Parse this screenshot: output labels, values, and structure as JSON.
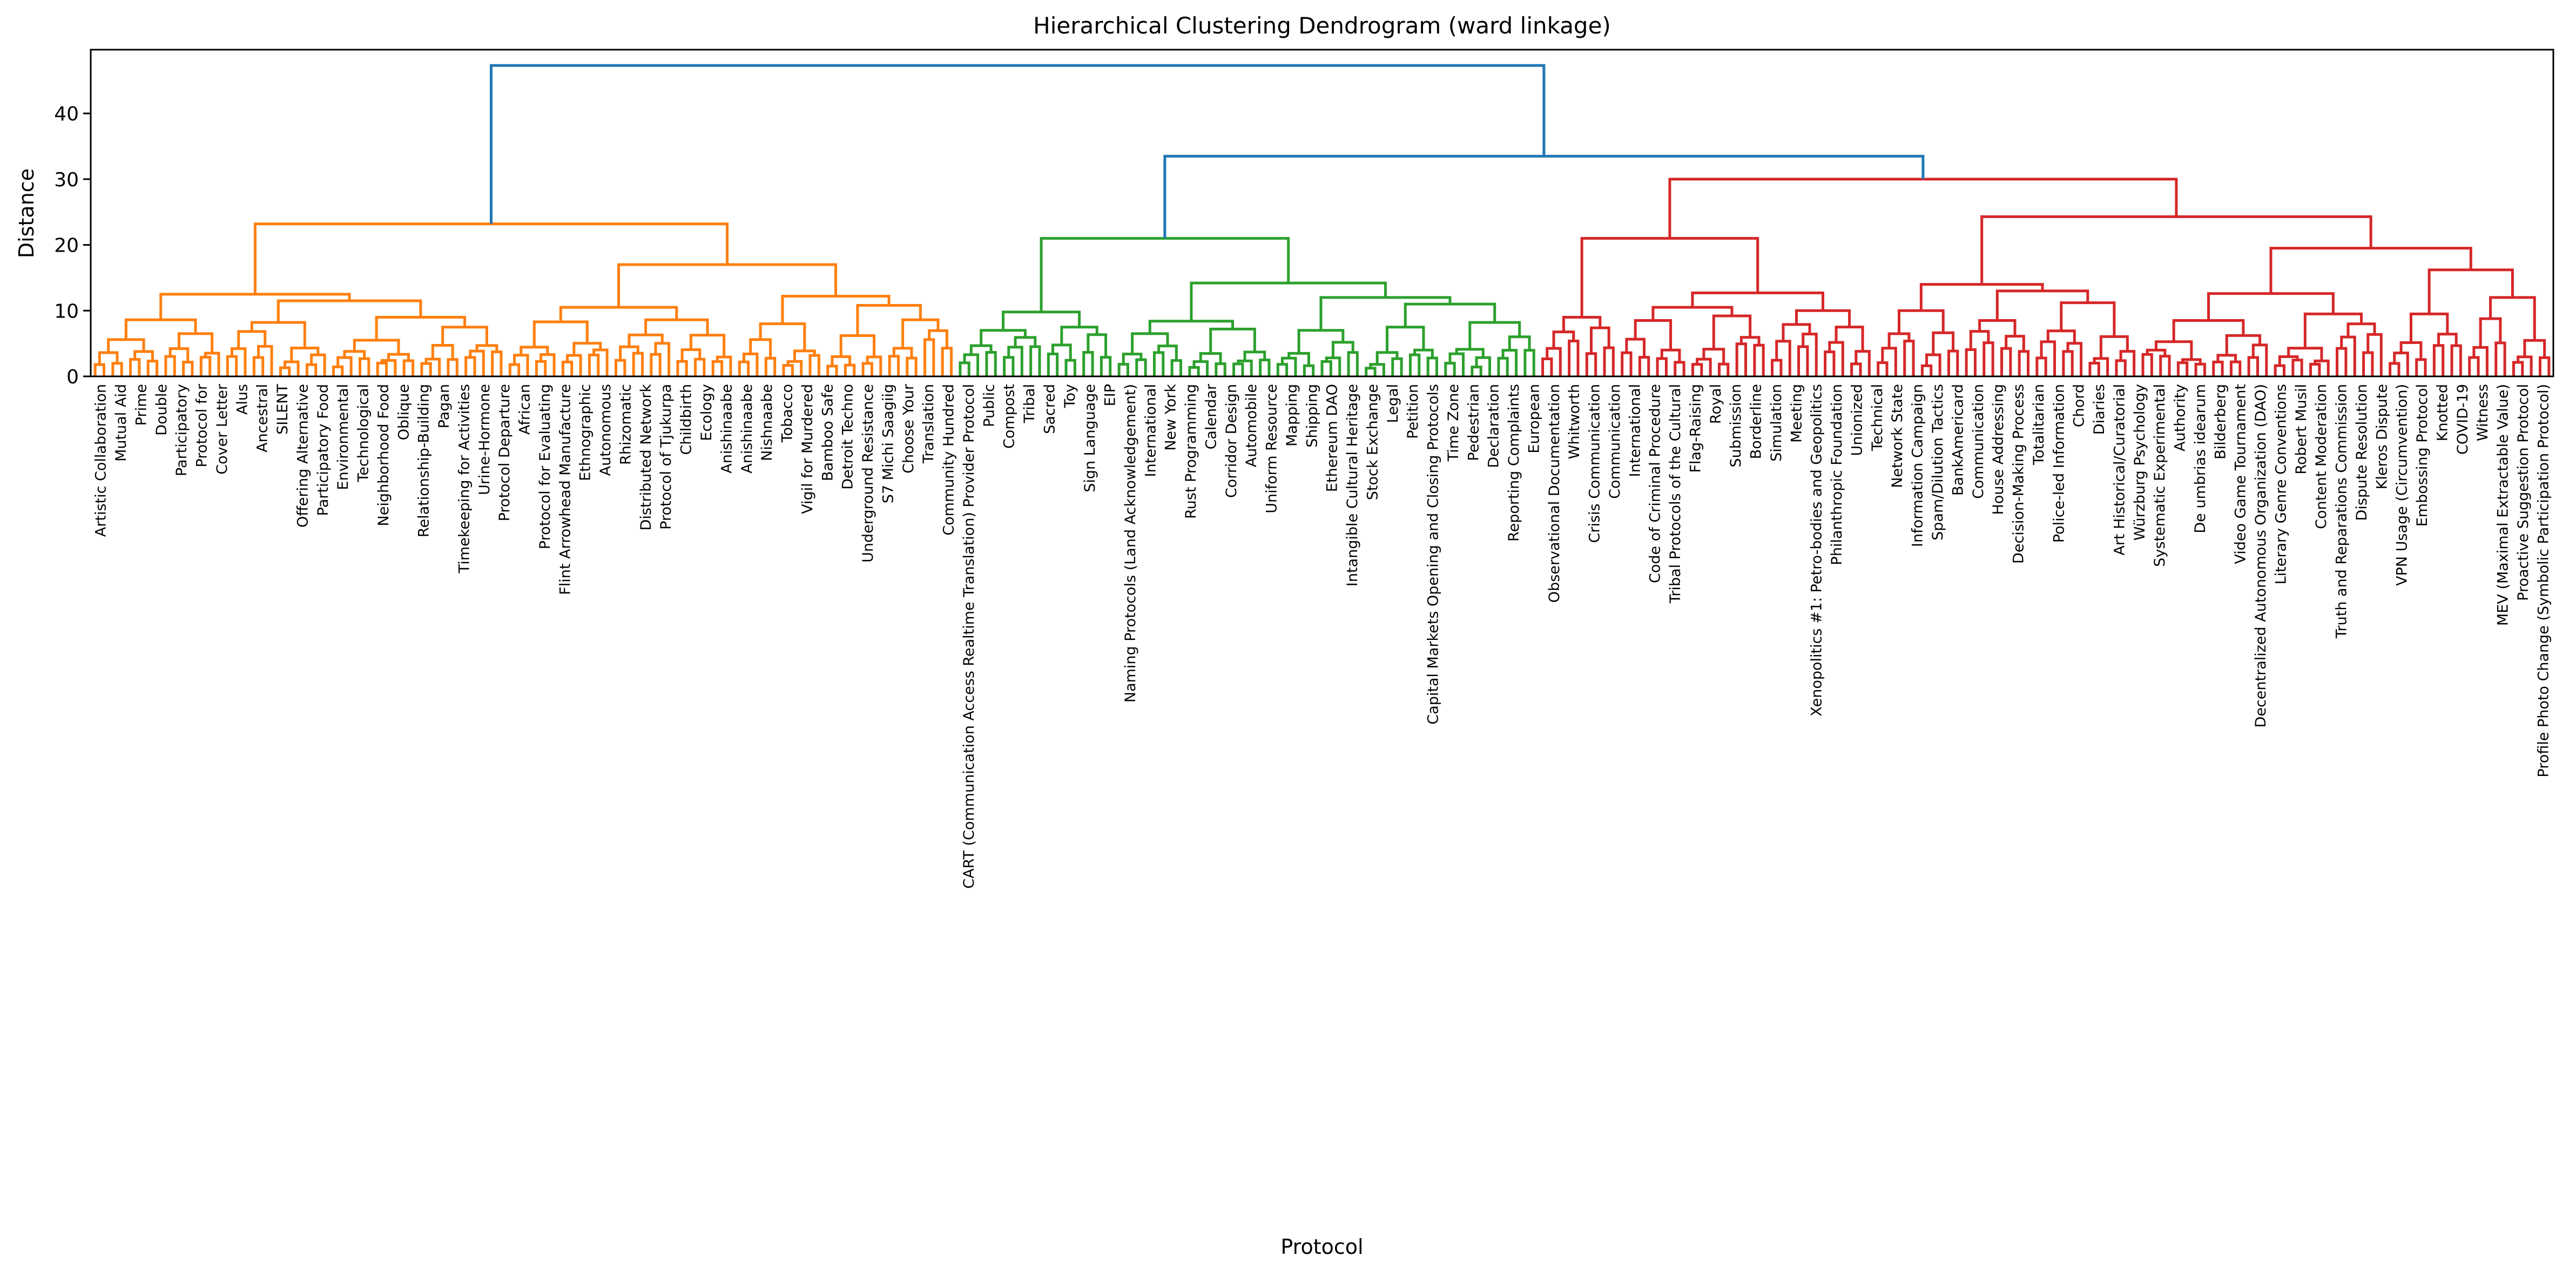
{
  "chart_data": {
    "type": "dendrogram",
    "title": "Hierarchical Clustering Dendrogram (ward linkage)",
    "xlabel": "Protocol",
    "ylabel": "Distance",
    "ylim": [
      0,
      49.7
    ],
    "yticks": [
      0,
      10,
      20,
      30,
      40
    ],
    "grid": false,
    "above_threshold_color": "#1f77b4",
    "tree": {
      "h": 47.3,
      "color": "#1f77b4",
      "c": [
        {
          "cluster": "orange",
          "color": "#ff7f0e",
          "h": 23.2,
          "c": [
            {
              "h": 12.5,
              "c": [
                {
                  "h": 8.6,
                  "c": [
                    {
                      "h": 5.6,
                      "n": 8
                    },
                    {
                      "h": 6.5,
                      "n": 7
                    }
                  ]
                },
                {
                  "h": 11.5,
                  "c": [
                    {
                      "h": 8.2,
                      "n": 12
                    },
                    {
                      "h": 9.0,
                      "c": [
                        {
                          "h": 5.5,
                          "n": 10
                        },
                        {
                          "h": 7.5,
                          "n": 10
                        }
                      ]
                    }
                  ]
                }
              ]
            },
            {
              "h": 17.0,
              "c": [
                {
                  "h": 10.5,
                  "c": [
                    {
                      "h": 8.3,
                      "n": 12
                    },
                    {
                      "h": 8.6,
                      "n": 14
                    }
                  ]
                },
                {
                  "h": 12.2,
                  "c": [
                    {
                      "h": 8.0,
                      "n": 10
                    },
                    {
                      "h": 10.8,
                      "c": [
                        {
                          "h": 6.2,
                          "n": 7
                        },
                        {
                          "h": 8.6,
                          "n": 8
                        }
                      ]
                    }
                  ]
                }
              ]
            }
          ]
        },
        {
          "h": 33.5,
          "color": "#1f77b4",
          "c": [
            {
              "cluster": "green",
              "color": "#2ca02c",
              "h": 21.0,
              "c": [
                {
                  "h": 9.8,
                  "c": [
                    {
                      "h": 7.0,
                      "n": 10
                    },
                    {
                      "h": 7.5,
                      "n": 8
                    }
                  ]
                },
                {
                  "h": 14.2,
                  "c": [
                    {
                      "h": 8.4,
                      "c": [
                        {
                          "h": 6.5,
                          "n": 8
                        },
                        {
                          "h": 7.2,
                          "n": 10
                        }
                      ]
                    },
                    {
                      "h": 12.0,
                      "c": [
                        {
                          "h": 7.0,
                          "n": 10
                        },
                        {
                          "h": 11.0,
                          "c": [
                            {
                              "h": 7.5,
                              "n": 9
                            },
                            {
                              "h": 8.2,
                              "n": 11
                            }
                          ]
                        }
                      ]
                    }
                  ]
                }
              ]
            },
            {
              "cluster": "red",
              "color": "#d62728",
              "h": 30.0,
              "c": [
                {
                  "h": 21.0,
                  "c": [
                    {
                      "h": 9.0,
                      "n": 9
                    },
                    {
                      "h": 12.7,
                      "c": [
                        {
                          "h": 10.5,
                          "c": [
                            {
                              "h": 8.5,
                              "n": 8
                            },
                            {
                              "h": 9.2,
                              "n": 9
                            }
                          ]
                        },
                        {
                          "h": 10.0,
                          "n": 12
                        }
                      ]
                    }
                  ]
                },
                {
                  "h": 24.3,
                  "c": [
                    {
                      "h": 14.0,
                      "c": [
                        {
                          "h": 10.0,
                          "n": 10
                        },
                        {
                          "h": 13.0,
                          "c": [
                            {
                              "h": 8.5,
                              "n": 8
                            },
                            {
                              "h": 11.2,
                              "n": 12
                            }
                          ]
                        }
                      ]
                    },
                    {
                      "h": 19.5,
                      "c": [
                        {
                          "h": 12.6,
                          "c": [
                            {
                              "h": 8.5,
                              "n": 15
                            },
                            {
                              "h": 9.5,
                              "n": 13
                            }
                          ]
                        },
                        {
                          "h": 16.2,
                          "c": [
                            {
                              "h": 9.5,
                              "n": 9
                            },
                            {
                              "h": 12.0,
                              "n": 10
                            }
                          ]
                        }
                      ]
                    }
                  ]
                }
              ]
            }
          ]
        }
      ]
    },
    "leaf_labels": {
      "orange": [
        "Artistic Collaboration",
        "Mutual Aid",
        "Prime",
        "Double",
        "Participatory",
        "Protocol for",
        "Cover Letter",
        "Alus",
        "Ancestral",
        "SILENT",
        "Offering Alternative",
        "Participatory Food",
        "Environmental",
        "Technological",
        "Neighborhood Food",
        "Oblique",
        "Relationship-Building",
        "Pagan",
        "Timekeeping for Activities",
        "Urine-Hormone",
        "Protocol Departure",
        "African",
        "Protocol for Evaluating",
        "Flint Arrowhead Manufacture",
        "Ethnographic",
        "Autonomous",
        "Rhizomatic",
        "Distributed Network",
        "Protocol of Tjukurpa",
        "Childbirth",
        "Ecology",
        "Anishinaabe",
        "Anishinaabe",
        "Nishnaabe",
        "Tobacco",
        "Vigil for Murdered",
        "Bamboo Safe",
        "Detroit Techno",
        "Underground Resistance",
        "S7 Michi Saagiig",
        "Choose Your",
        "Translation",
        "Community Hundred",
        "CART (Communication Access Realtime Translation) Provider Protocol",
        "Public",
        "Compost",
        "Tribal",
        "Sacred",
        "Toy",
        "Sign Language",
        "EIP",
        "Naming Protocols (Land Acknowledgement)",
        "International",
        "New York"
      ],
      "green": [
        "Rust Programming",
        "Calendar",
        "Corridor Design",
        "Automobile",
        "Uniform Resource",
        "Mapping",
        "Shipping",
        "Ethereum DAO",
        "Intangible Cultural Heritage",
        "Stock Exchange",
        "Legal",
        "Petition",
        "Capital Markets Opening and Closing Protocols",
        "Time Zone",
        "Pedestrian",
        "Declaration",
        "Reporting Complaints",
        "European",
        "Observational Documentation",
        "Whitworth",
        "Crisis Communication",
        "Communication",
        "International",
        "Code of Criminal Procedure",
        "Tribal Protocols of the Cultural",
        "Flag-Raising"
      ],
      "red": [
        "Royal",
        "Submission",
        "Borderline",
        "Simulation",
        "Meeting",
        "Xenopolitics #1: Petro-bodies and Geopolitics",
        "Philanthropic Foundation",
        "Unionized",
        "Technical",
        "Network State",
        "Information Campaign",
        "Spam/Dilution Tactics",
        "BankAmericard",
        "Communication",
        "House Addressing",
        "Decision-Making Process",
        "Totalitarian",
        "Police-led Information",
        "Chord",
        "Diaries",
        "Art Historical/Curatorial",
        "Würzburg Psychology",
        "Systematic Experimental",
        "Authority",
        "De umbrias idearum",
        "Bilderberg",
        "Video Game Tournament",
        "Decentralized Autonomous Organization (DAO)",
        "Literary Genre Conventions",
        "Robert Musil",
        "Content Moderation",
        "Truth and Reparations Commission",
        "Dispute Resolution",
        "Kleros Dispute",
        "VPN Usage (Circumvention)",
        "Embossing Protocol",
        "Knotted",
        "COVID-19",
        "Witness",
        "MEV (Maximal Extractable Value)",
        "Proactive Suggestion Protocol",
        "Profile Photo Change (Symbolic Participation Protocol)"
      ]
    }
  }
}
